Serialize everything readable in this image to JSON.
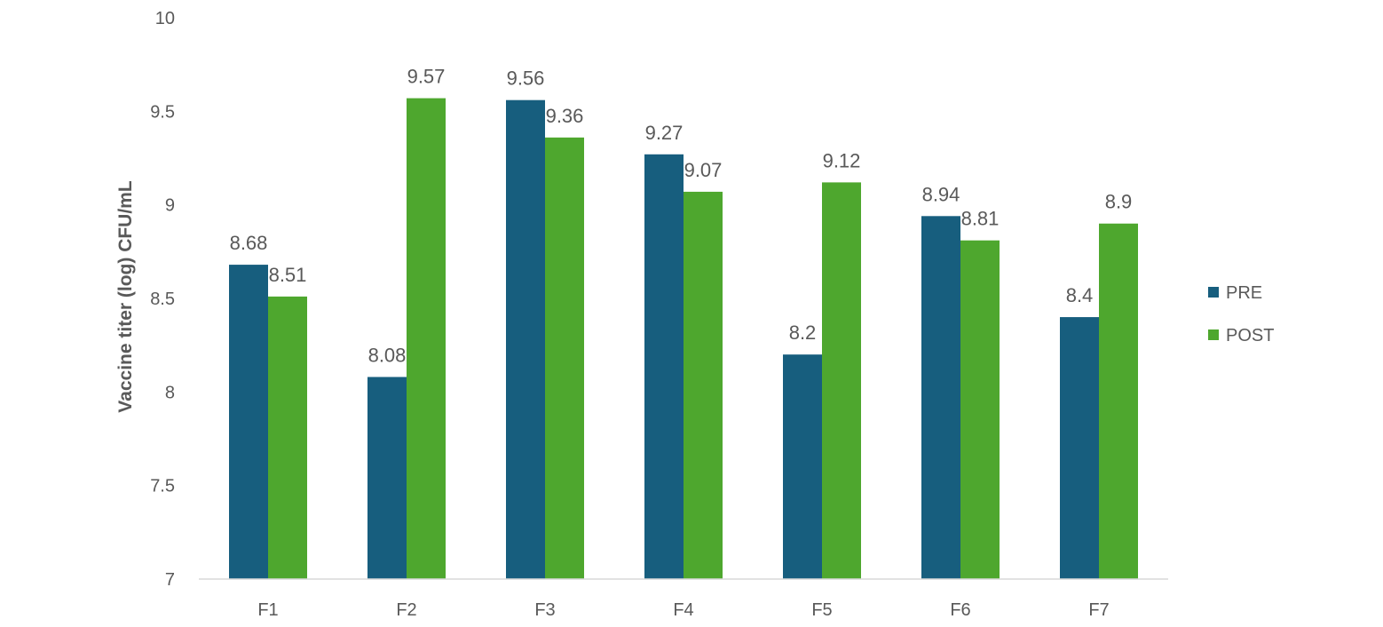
{
  "chart_data": {
    "type": "bar",
    "title": "",
    "xlabel": "",
    "ylabel": "Vaccine titer (log) CFU/mL",
    "ylim": [
      7,
      10
    ],
    "yticks": [
      "7",
      "7.5",
      "8",
      "8.5",
      "9",
      "9.5",
      "10"
    ],
    "ytick_values": [
      7,
      7.5,
      8,
      8.5,
      9,
      9.5,
      10
    ],
    "categories": [
      "F1",
      "F2",
      "F3",
      "F4",
      "F5",
      "F6",
      "F7"
    ],
    "series": [
      {
        "name": "PRE",
        "color": "#175e7e",
        "values": [
          8.68,
          8.08,
          9.56,
          9.27,
          8.2,
          8.94,
          8.4
        ],
        "labels": [
          "8.68",
          "8.08",
          "9.56",
          "9.27",
          "8.2",
          "8.94",
          "8.4"
        ]
      },
      {
        "name": "POST",
        "color": "#4ea72e",
        "values": [
          8.51,
          9.57,
          9.36,
          9.07,
          9.12,
          8.81,
          8.9
        ],
        "labels": [
          "8.51",
          "9.57",
          "9.36",
          "9.07",
          "9.12",
          "8.81",
          "8.9"
        ]
      }
    ],
    "grid": false,
    "legend": "right"
  }
}
